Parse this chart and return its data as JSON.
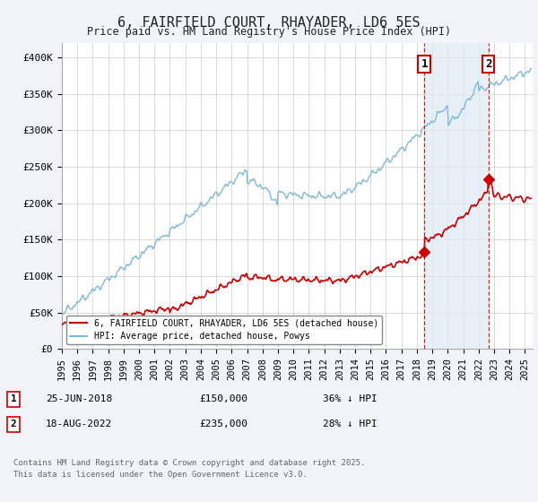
{
  "title": "6, FAIRFIELD COURT, RHAYADER, LD6 5ES",
  "subtitle": "Price paid vs. HM Land Registry's House Price Index (HPI)",
  "xlim_start": 1995.0,
  "xlim_end": 2025.5,
  "ylim": [
    0,
    420000
  ],
  "yticks": [
    0,
    50000,
    100000,
    150000,
    200000,
    250000,
    300000,
    350000,
    400000
  ],
  "ytick_labels": [
    "£0",
    "£50K",
    "£100K",
    "£150K",
    "£200K",
    "£250K",
    "£300K",
    "£350K",
    "£400K"
  ],
  "xtick_years": [
    1995,
    1996,
    1997,
    1998,
    1999,
    2000,
    2001,
    2002,
    2003,
    2004,
    2005,
    2006,
    2007,
    2008,
    2009,
    2010,
    2011,
    2012,
    2013,
    2014,
    2015,
    2016,
    2017,
    2018,
    2019,
    2020,
    2021,
    2022,
    2023,
    2024,
    2025
  ],
  "hpi_color": "#7fb8d8",
  "price_color": "#cc0000",
  "vline_color": "#cc0000",
  "transaction1_year": 2018.48,
  "transaction1_price": 150000,
  "transaction2_year": 2022.63,
  "transaction2_price": 235000,
  "legend_entries": [
    "6, FAIRFIELD COURT, RHAYADER, LD6 5ES (detached house)",
    "HPI: Average price, detached house, Powys"
  ],
  "annotation1_date": "25-JUN-2018",
  "annotation1_price": "£150,000",
  "annotation1_pct": "36% ↓ HPI",
  "annotation2_date": "18-AUG-2022",
  "annotation2_price": "£235,000",
  "annotation2_pct": "28% ↓ HPI",
  "footer": "Contains HM Land Registry data © Crown copyright and database right 2025.\nThis data is licensed under the Open Government Licence v3.0.",
  "bg_color": "#f0f4f8",
  "plot_bg_color": "#ffffff",
  "shade_color": "#deeaf5",
  "grid_color": "#cccccc"
}
